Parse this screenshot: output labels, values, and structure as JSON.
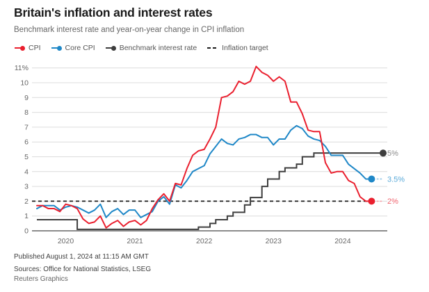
{
  "header": {
    "title": "Britain's inflation and interest rates",
    "subtitle": "Benchmark interest rate and year-on-year change in CPI inflation"
  },
  "legend": [
    {
      "label": "CPI",
      "color": "#ea1f2e",
      "marker": "line-dot-icon"
    },
    {
      "label": "Core CPI",
      "color": "#1e87c7",
      "marker": "line-dot-icon"
    },
    {
      "label": "Benchmark interest rate",
      "color": "#3d3d3d",
      "marker": "line-dot-icon"
    },
    {
      "label": "Inflation target",
      "color": "#1a1a1a",
      "marker": "dashes-icon"
    }
  ],
  "chart_data": {
    "type": "line",
    "title": "Britain's inflation and interest rates",
    "unit": "%",
    "x_start": "2019-08",
    "x_frequency": "monthly",
    "x_tick_labels": [
      "2020",
      "2021",
      "2022",
      "2023",
      "2024"
    ],
    "x_tick_month_indices": [
      5,
      17,
      29,
      41,
      53
    ],
    "ylim": [
      0,
      11
    ],
    "grid": "horizontal",
    "y_ticks": [
      0,
      1,
      2,
      3,
      4,
      5,
      6,
      7,
      8,
      9,
      10,
      11
    ],
    "y_tick_labels": [
      "0",
      "1",
      "2",
      "3",
      "4",
      "5",
      "6",
      "7",
      "8",
      "9",
      "10",
      "11%"
    ],
    "series": [
      {
        "name": "Inflation target",
        "type": "hline",
        "value": 2,
        "color": "#1a1a1a",
        "dash": true
      },
      {
        "name": "Benchmark interest rate",
        "type": "step",
        "color": "#3d3d3d",
        "x_offset": 0,
        "end_label": "5%",
        "end_label_color": "#8a8a8a",
        "values": [
          0.75,
          0.75,
          0.75,
          0.75,
          0.75,
          0.75,
          0.75,
          0.1,
          0.1,
          0.1,
          0.1,
          0.1,
          0.1,
          0.1,
          0.1,
          0.1,
          0.1,
          0.1,
          0.1,
          0.1,
          0.1,
          0.1,
          0.1,
          0.1,
          0.1,
          0.1,
          0.1,
          0.1,
          0.25,
          0.25,
          0.5,
          0.75,
          0.75,
          1.0,
          1.25,
          1.25,
          1.75,
          2.25,
          2.25,
          3.0,
          3.5,
          3.5,
          4.0,
          4.25,
          4.25,
          4.5,
          5.0,
          5.0,
          5.25,
          5.25,
          5.25,
          5.25,
          5.25,
          5.25,
          5.25,
          5.25,
          5.25,
          5.25,
          5.25,
          5.25,
          5.25
        ]
      },
      {
        "name": "Core CPI",
        "type": "line",
        "color": "#1e87c7",
        "x_offset": 0,
        "end_label": "3.5%",
        "end_label_color": "#5aaad9",
        "connector_color": "#8fc4e6",
        "values": [
          1.5,
          1.7,
          1.7,
          1.7,
          1.4,
          1.6,
          1.7,
          1.6,
          1.4,
          1.2,
          1.4,
          1.8,
          0.9,
          1.3,
          1.5,
          1.1,
          1.4,
          1.4,
          0.9,
          1.1,
          1.3,
          2.0,
          2.3,
          1.8,
          3.1,
          2.9,
          3.4,
          4.0,
          4.2,
          4.4,
          5.2,
          5.7,
          6.2,
          5.9,
          5.8,
          6.2,
          6.3,
          6.5,
          6.5,
          6.3,
          6.3,
          5.8,
          6.2,
          6.2,
          6.8,
          7.1,
          6.9,
          6.4,
          6.2,
          6.1,
          5.7,
          5.1,
          5.1,
          5.1,
          4.5,
          4.2,
          3.9,
          3.5,
          3.5
        ]
      },
      {
        "name": "CPI",
        "type": "line",
        "color": "#ea1f2e",
        "x_offset": 0,
        "end_label": "2%",
        "end_label_color": "#ef626d",
        "connector_color": "#f5a0a7",
        "values": [
          1.7,
          1.7,
          1.5,
          1.5,
          1.3,
          1.8,
          1.7,
          1.5,
          0.8,
          0.5,
          0.6,
          1.0,
          0.2,
          0.5,
          0.7,
          0.3,
          0.6,
          0.7,
          0.4,
          0.7,
          1.5,
          2.1,
          2.5,
          2.0,
          3.2,
          3.1,
          4.2,
          5.1,
          5.4,
          5.5,
          6.2,
          7.0,
          9.0,
          9.1,
          9.4,
          10.1,
          9.9,
          10.1,
          11.1,
          10.7,
          10.5,
          10.1,
          10.4,
          10.1,
          8.7,
          8.7,
          7.9,
          6.8,
          6.7,
          6.7,
          4.6,
          3.9,
          4.0,
          4.0,
          3.4,
          3.2,
          2.3,
          2.0,
          2.0
        ]
      }
    ]
  },
  "footer": {
    "published": "Published August 1, 2024 at 11:15 AM GMT",
    "sources": "Sources: Office for National Statistics, LSEG",
    "credit": "Reuters Graphics"
  }
}
